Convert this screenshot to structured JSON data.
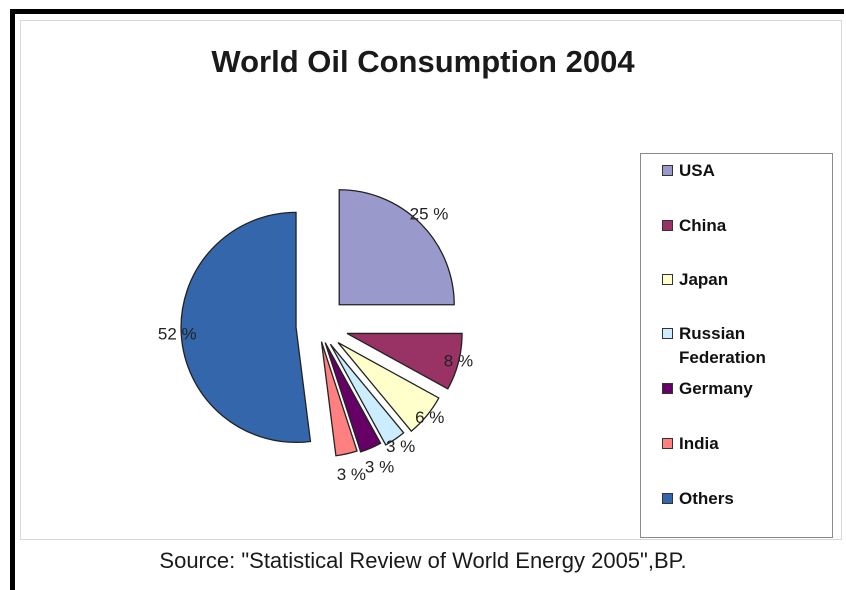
{
  "chart_data": {
    "type": "pie",
    "title": "World Oil Consumption 2004",
    "source": "Source: \"Statistical Review of World Energy 2005\",BP.",
    "legend_position": "right",
    "slices": [
      {
        "label": "USA",
        "value": 25,
        "value_label": "25 %",
        "color": "#9999cc"
      },
      {
        "label": "China",
        "value": 8,
        "value_label": "8 %",
        "color": "#993366"
      },
      {
        "label": "Japan",
        "value": 6,
        "value_label": "6 %",
        "color": "#ffffcc"
      },
      {
        "label": "Russian Federation",
        "value": 3,
        "value_label": "3 %",
        "color": "#ccecff"
      },
      {
        "label": "Germany",
        "value": 3,
        "value_label": "3 %",
        "color": "#660066"
      },
      {
        "label": "India",
        "value": 3,
        "value_label": "3 %",
        "color": "#ff8080"
      },
      {
        "label": "Others",
        "value": 52,
        "value_label": "52 %",
        "color": "#3366aa"
      }
    ]
  }
}
